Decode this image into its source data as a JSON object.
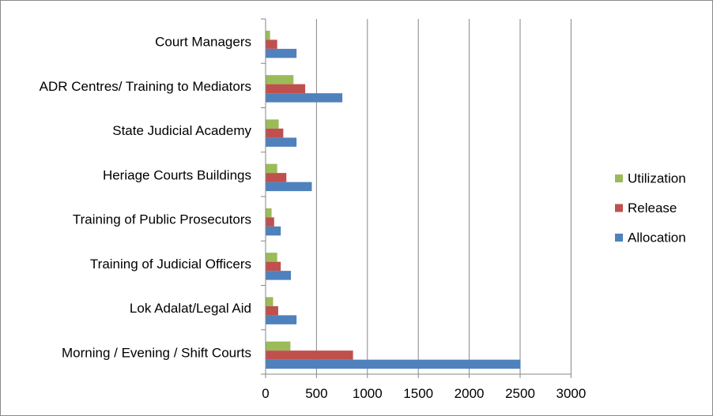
{
  "chart_data": {
    "type": "bar",
    "orientation": "horizontal",
    "categories": [
      "Court Managers",
      "ADR Centres/ Training to Mediators",
      "State Judicial Academy",
      "Heriage Courts Buildings",
      "Training of Public Prosecutors",
      "Training of Judicial Officers",
      "Lok Adalat/Legal Aid",
      "Morning / Evening / Shift Courts"
    ],
    "series": [
      {
        "name": "Utilization",
        "color": "#9BBB59",
        "values": [
          40,
          270,
          125,
          110,
          55,
          110,
          70,
          240
        ]
      },
      {
        "name": "Release",
        "color": "#C0504D",
        "values": [
          110,
          385,
          170,
          200,
          80,
          145,
          120,
          855
        ]
      },
      {
        "name": "Allocation",
        "color": "#4F81BD",
        "values": [
          300,
          750,
          300,
          450,
          145,
          245,
          300,
          2500
        ]
      }
    ],
    "x_ticks": [
      "0",
      "500",
      "1000",
      "1500",
      "2000",
      "2500",
      "3000"
    ],
    "xlim": [
      0,
      3000
    ],
    "grid": "vertical major gridlines",
    "legend": [
      "Utilization",
      "Release",
      "Allocation"
    ],
    "legend_position": "right",
    "title": "",
    "xlabel": "",
    "ylabel": ""
  }
}
